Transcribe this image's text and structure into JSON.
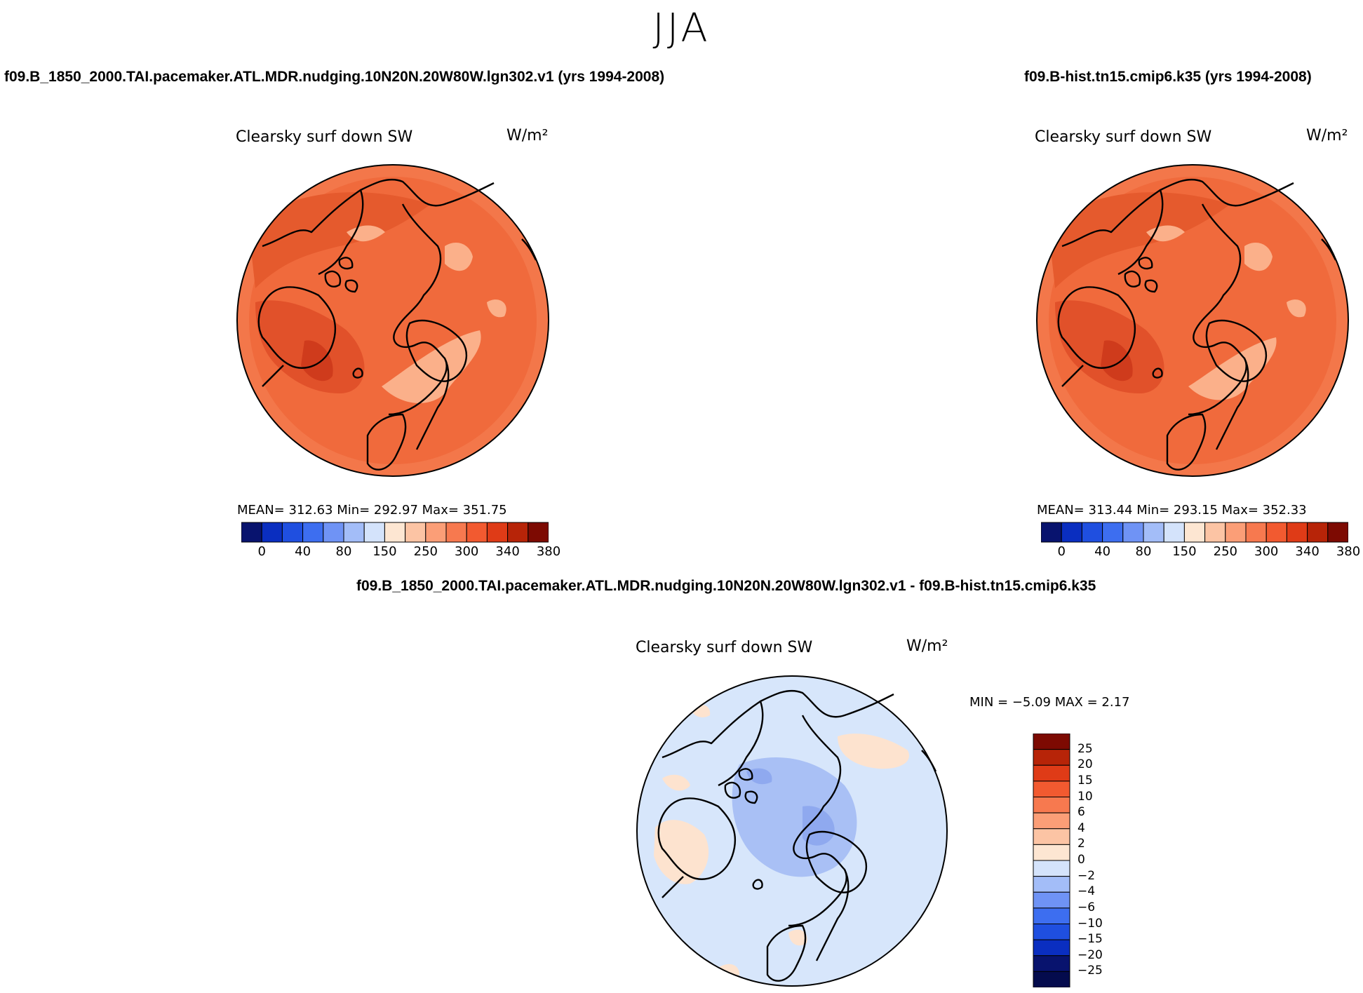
{
  "figure": {
    "season": "JJA",
    "colors": {
      "coast": "#000000",
      "base_red": "#f06a3c",
      "deep_red": "#d9431f",
      "light_red": "#fbb08a",
      "diff_bg": "#d7e6fb",
      "diff_blue": "#9bb4f2",
      "diff_peach": "#fde3cf"
    }
  },
  "panels": [
    {
      "case": "f09.B_1850_2000.TAI.pacemaker.ATL.MDR.nudging.10N20N.20W80W.lgn302.v1 (yrs 1994-2008)",
      "variable": "Clearsky surf down SW",
      "units": "W/m²",
      "stats_text": "MEAN= 312.63   Min= 292.97   Max= 351.75",
      "colorbar_ticks": [
        "0",
        "40",
        "80",
        "150",
        "250",
        "300",
        "340",
        "380"
      ]
    },
    {
      "case": "f09.B-hist.tn15.cmip6.k35 (yrs 1994-2008)",
      "variable": "Clearsky surf down SW",
      "units": "W/m²",
      "stats_text": "MEAN= 313.44   Min= 293.15   Max= 352.33",
      "colorbar_ticks": [
        "0",
        "40",
        "80",
        "150",
        "250",
        "300",
        "340",
        "380"
      ]
    },
    {
      "case": "f09.B_1850_2000.TAI.pacemaker.ATL.MDR.nudging.10N20N.20W80W.lgn302.v1 - f09.B-hist.tn15.cmip6.k35",
      "variable": "Clearsky surf down SW",
      "units": "W/m²",
      "stats_text": "MIN =   −5.09  MAX =    2.17",
      "colorbar_ticks": [
        "25",
        "20",
        "15",
        "10",
        "6",
        "4",
        "2",
        "0",
        "−2",
        "−4",
        "−6",
        "−10",
        "−15",
        "−20",
        "−25"
      ]
    }
  ],
  "chart_data": [
    {
      "type": "heatmap",
      "title": "Clearsky surf down SW",
      "subtitle": "f09.B_1850_2000.TAI.pacemaker.ATL.MDR.nudging.10N20N.20W80W.lgn302.v1 (yrs 1994-2008)",
      "units": "W/m²",
      "projection": "north polar stereographic",
      "mean": 312.63,
      "min": 292.97,
      "max": 351.75,
      "contour_levels": [
        0,
        20,
        40,
        60,
        80,
        100,
        150,
        200,
        250,
        275,
        300,
        320,
        340,
        360,
        380
      ],
      "colorbar_ticks": [
        0,
        40,
        80,
        150,
        250,
        300,
        340,
        380
      ],
      "colorbar_colors": [
        "#08136e",
        "#0a2ec0",
        "#1f4fe0",
        "#3d6ef0",
        "#6f93f5",
        "#a3bdf8",
        "#d4e3fb",
        "#fde6d2",
        "#fcc4a4",
        "#fb9e77",
        "#f7794f",
        "#f25a30",
        "#df3b17",
        "#b72408",
        "#7d0a02"
      ]
    },
    {
      "type": "heatmap",
      "title": "Clearsky surf down SW",
      "subtitle": "f09.B-hist.tn15.cmip6.k35 (yrs 1994-2008)",
      "units": "W/m²",
      "projection": "north polar stereographic",
      "mean": 313.44,
      "min": 293.15,
      "max": 352.33,
      "contour_levels": [
        0,
        20,
        40,
        60,
        80,
        100,
        150,
        200,
        250,
        275,
        300,
        320,
        340,
        360,
        380
      ],
      "colorbar_ticks": [
        0,
        40,
        80,
        150,
        250,
        300,
        340,
        380
      ],
      "colorbar_colors": [
        "#08136e",
        "#0a2ec0",
        "#1f4fe0",
        "#3d6ef0",
        "#6f93f5",
        "#a3bdf8",
        "#d4e3fb",
        "#fde6d2",
        "#fcc4a4",
        "#fb9e77",
        "#f7794f",
        "#f25a30",
        "#df3b17",
        "#b72408",
        "#7d0a02"
      ]
    },
    {
      "type": "heatmap",
      "title": "Clearsky surf down SW",
      "subtitle": "f09.B_1850_2000.TAI.pacemaker.ATL.MDR.nudging.10N20N.20W80W.lgn302.v1 - f09.B-hist.tn15.cmip6.k35",
      "units": "W/m²",
      "projection": "north polar stereographic",
      "min": -5.09,
      "max": 2.17,
      "contour_levels": [
        -25,
        -20,
        -15,
        -10,
        -6,
        -4,
        -2,
        0,
        2,
        4,
        6,
        10,
        15,
        20,
        25
      ],
      "colorbar_ticks": [
        25,
        20,
        15,
        10,
        6,
        4,
        2,
        0,
        -2,
        -4,
        -6,
        -10,
        -15,
        -20,
        -25
      ],
      "colorbar_colors": [
        "#7d0a02",
        "#b72408",
        "#df3b17",
        "#f25a30",
        "#f7794f",
        "#fb9e77",
        "#fcc4a4",
        "#fde6d2",
        "#d4e3fb",
        "#a3bdf8",
        "#6f93f5",
        "#3d6ef0",
        "#1f4fe0",
        "#0a2ec0",
        "#08136e",
        "#040b4d"
      ]
    }
  ]
}
